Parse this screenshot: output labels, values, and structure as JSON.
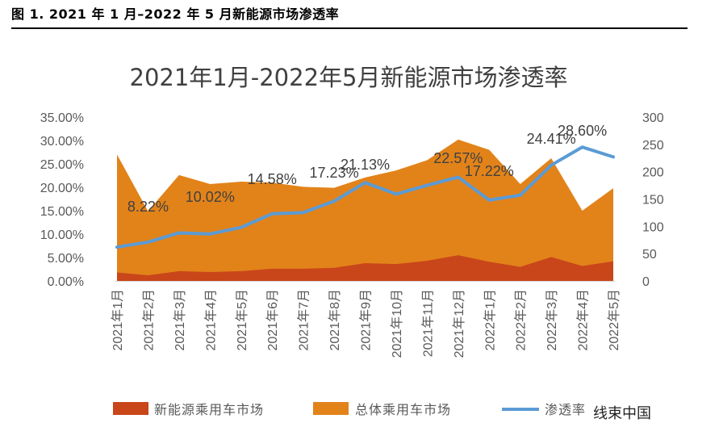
{
  "caption": "图 1. 2021 年 1 月–2022 年 5 月新能源市场渗透率",
  "watermark": "线束中国",
  "chart_data": {
    "type": "area+line",
    "title": "2021年1月-2022年5月新能源市场渗透率",
    "categories": [
      "2021年1月",
      "2021年2月",
      "2021年3月",
      "2021年4月",
      "2021年5月",
      "2021年6月",
      "2021年7月",
      "2021年8月",
      "2021年9月",
      "2021年10月",
      "2021年11月",
      "2021年12月",
      "2022年1月",
      "2022年2月",
      "2022年3月",
      "2022年4月",
      "2022年5月"
    ],
    "y_left": {
      "ticks": [
        "0.00%",
        "5.00%",
        "10.00%",
        "15.00%",
        "20.00%",
        "25.00%",
        "30.00%",
        "35.00%"
      ],
      "range": [
        0,
        35
      ]
    },
    "y_right": {
      "ticks": [
        "0",
        "50",
        "100",
        "150",
        "200",
        "250",
        "300"
      ],
      "range": [
        0,
        300
      ]
    },
    "series": [
      {
        "name": "新能源乘用车市场",
        "type": "area",
        "axis": "left",
        "color": "#C9461A",
        "values": [
          1.8,
          1.2,
          2.1,
          1.9,
          2.1,
          2.6,
          2.6,
          2.8,
          3.8,
          3.6,
          4.3,
          5.5,
          4.1,
          3.0,
          5.1,
          3.2,
          4.2
        ]
      },
      {
        "name": "总体乘用车市场",
        "type": "area",
        "axis": "left",
        "color": "#E2831A",
        "values": [
          27.0,
          14.9,
          22.6,
          20.7,
          21.2,
          21.0,
          20.1,
          19.9,
          22.1,
          23.6,
          25.8,
          30.2,
          28.0,
          20.7,
          26.2,
          15.0,
          19.8
        ]
      },
      {
        "name": "渗透率",
        "type": "line",
        "axis": "right",
        "color": "#5B9BD5",
        "values": [
          62,
          71,
          88,
          86,
          98,
          123,
          125,
          146,
          180,
          159,
          175,
          190,
          148,
          157,
          212,
          245,
          227
        ]
      }
    ],
    "data_labels": [
      {
        "text": "8.22%",
        "index": 1
      },
      {
        "text": "10.02%",
        "index": 3
      },
      {
        "text": "14.58%",
        "index": 5
      },
      {
        "text": "17.23%",
        "index": 7
      },
      {
        "text": "21.13%",
        "index": 8
      },
      {
        "text": "22.57%",
        "index": 11
      },
      {
        "text": "17.22%",
        "index": 12
      },
      {
        "text": "24.41%",
        "index": 14
      },
      {
        "text": "28.60%",
        "index": 15
      }
    ],
    "legend_position": "bottom",
    "grid": false
  }
}
